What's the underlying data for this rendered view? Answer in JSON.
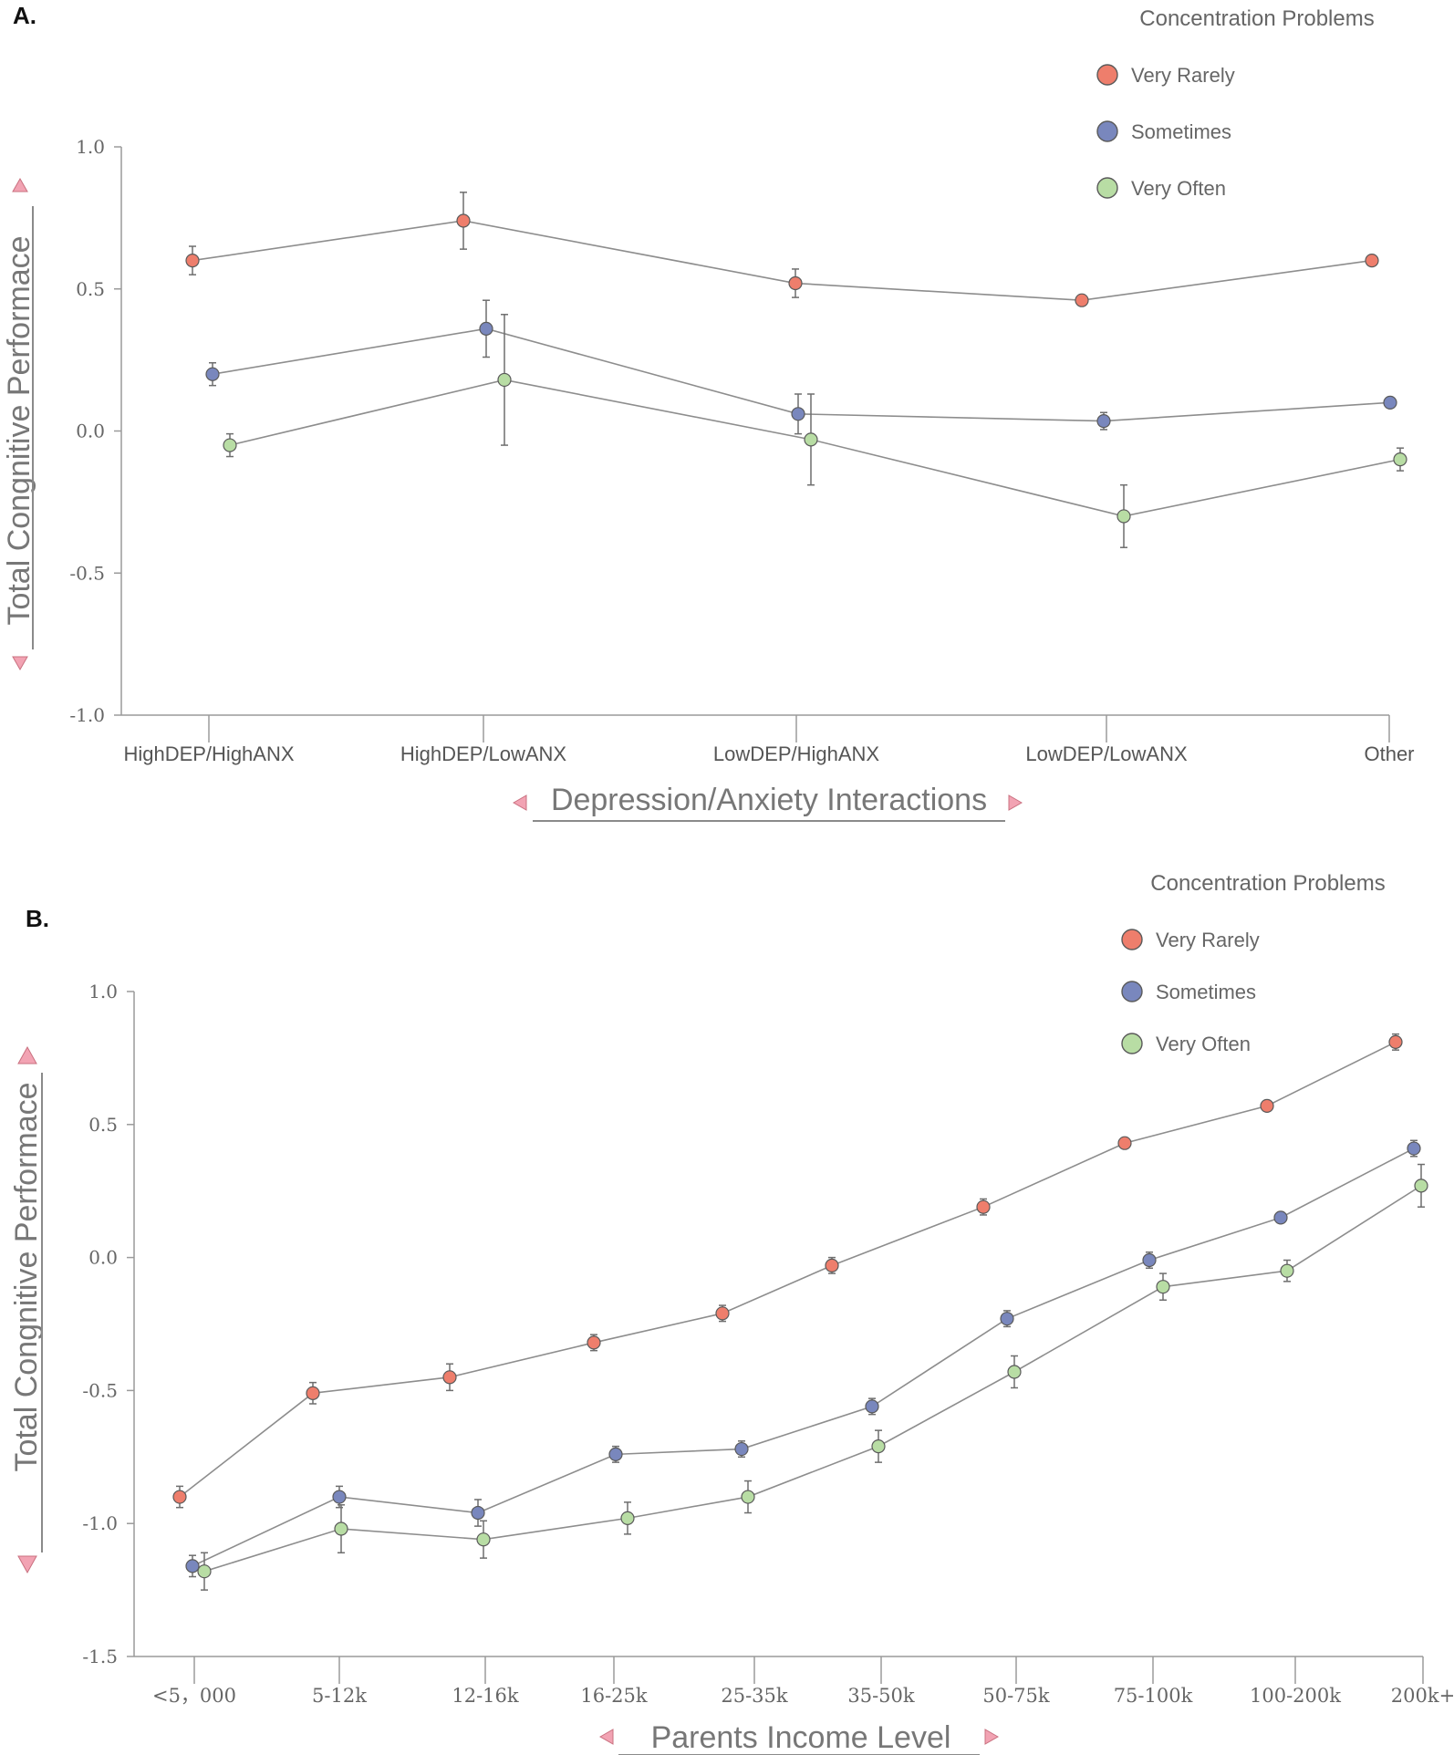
{
  "chart_data": [
    {
      "panel": "A.",
      "type": "line",
      "xlabel": "Depression/Anxiety Interactions",
      "ylabel": "Total Congnitive Performace",
      "categories": [
        "HighDEP/HighANX",
        "HighDEP/LowANX",
        "LowDEP/HighANX",
        "LowDEP/LowANX",
        "Other"
      ],
      "yticks": [
        "1.0",
        "0.5",
        "0.0",
        "-0.5",
        "-1.0"
      ],
      "ylim": [
        -1.0,
        1.0
      ],
      "legend_title": "Concentration Problems",
      "legend_position": "top-right",
      "grid": false,
      "series": [
        {
          "name": "Very Rarely",
          "color": "#EE7E6C",
          "values": [
            0.6,
            0.74,
            0.52,
            0.46,
            0.6
          ],
          "errors": [
            0.05,
            0.1,
            0.05,
            0.015,
            0.015
          ]
        },
        {
          "name": "Sometimes",
          "color": "#7987BD",
          "values": [
            0.2,
            0.36,
            0.06,
            0.035,
            0.1
          ],
          "errors": [
            0.04,
            0.1,
            0.07,
            0.03,
            0.015
          ]
        },
        {
          "name": "Very Often",
          "color": "#B8DDA4",
          "values": [
            -0.05,
            0.18,
            -0.03,
            -0.3,
            -0.1
          ],
          "errors": [
            0.04,
            0.23,
            0.16,
            0.11,
            0.04
          ]
        }
      ]
    },
    {
      "panel": "B.",
      "type": "line",
      "xlabel": "Parents Income Level",
      "ylabel": "Total Congnitive Performace",
      "categories": [
        "<5，000",
        "5-12k",
        "12-16k",
        "16-25k",
        "25-35k",
        "35-50k",
        "50-75k",
        "75-100k",
        "100-200k",
        "200k+"
      ],
      "yticks": [
        "1.0",
        "0.5",
        "0.0",
        "-0.5",
        "-1.0",
        "-1.5"
      ],
      "ylim": [
        -1.5,
        1.0
      ],
      "legend_title": "Concentration Problems",
      "legend_position": "top-right",
      "grid": false,
      "series": [
        {
          "name": "Very Rarely",
          "color": "#EE7E6C",
          "values": [
            -0.9,
            -0.51,
            -0.45,
            -0.32,
            -0.21,
            -0.03,
            0.19,
            0.43,
            0.57,
            0.81
          ],
          "errors": [
            0.04,
            0.04,
            0.05,
            0.03,
            0.03,
            0.03,
            0.03,
            0.015,
            0.015,
            0.03
          ]
        },
        {
          "name": "Sometimes",
          "color": "#7987BD",
          "values": [
            -1.16,
            -0.9,
            -0.96,
            -0.74,
            -0.72,
            -0.56,
            -0.23,
            -0.01,
            0.15,
            0.41
          ],
          "errors": [
            0.04,
            0.04,
            0.05,
            0.03,
            0.03,
            0.03,
            0.03,
            0.03,
            0.02,
            0.03
          ]
        },
        {
          "name": "Very Often",
          "color": "#B8DDA4",
          "values": [
            -1.18,
            -1.02,
            -1.06,
            -0.98,
            -0.9,
            -0.71,
            -0.43,
            -0.11,
            -0.05,
            0.27
          ],
          "errors": [
            0.07,
            0.09,
            0.07,
            0.06,
            0.06,
            0.06,
            0.06,
            0.05,
            0.04,
            0.08
          ]
        }
      ]
    }
  ]
}
